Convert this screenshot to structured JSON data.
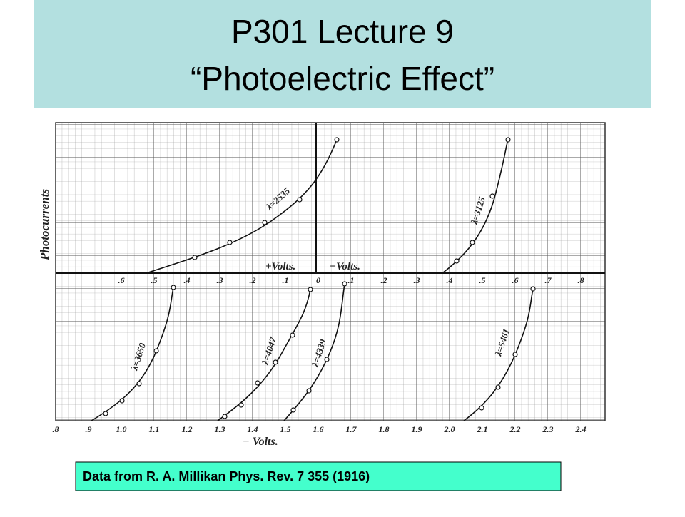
{
  "header": {
    "title": [
      "P301 Lecture 9",
      "“Photoelectric Effect”"
    ]
  },
  "figure": {
    "y_axis_label": "Photocurrents",
    "top_axis_ticks": [
      ".6",
      ".5",
      ".4",
      ".3",
      ".2",
      ".1",
      "0",
      ".1",
      ".2",
      ".3",
      ".4",
      ".5",
      ".6",
      ".7",
      ".8"
    ],
    "bottom_axis_ticks": [
      ".8",
      ".9",
      "1.0",
      "1.1",
      "1.2",
      "1.3",
      "1.4",
      "1.5",
      "1.6",
      "1.7",
      "1.8",
      "1.9",
      "2.0",
      "2.1",
      "2.2",
      "2.3",
      "2.4"
    ],
    "upper_axis_labels": [
      "+Volts.",
      "−Volts."
    ],
    "bottom_axis_label": "− Volts.",
    "curve_labels": [
      "λ=2535",
      "λ=3125",
      "λ=3650",
      "λ=4047",
      "λ=4339",
      "λ=5461"
    ]
  },
  "caption": "Data from R. A. Millikan Phys. Rev. 7 355 (1916)"
}
